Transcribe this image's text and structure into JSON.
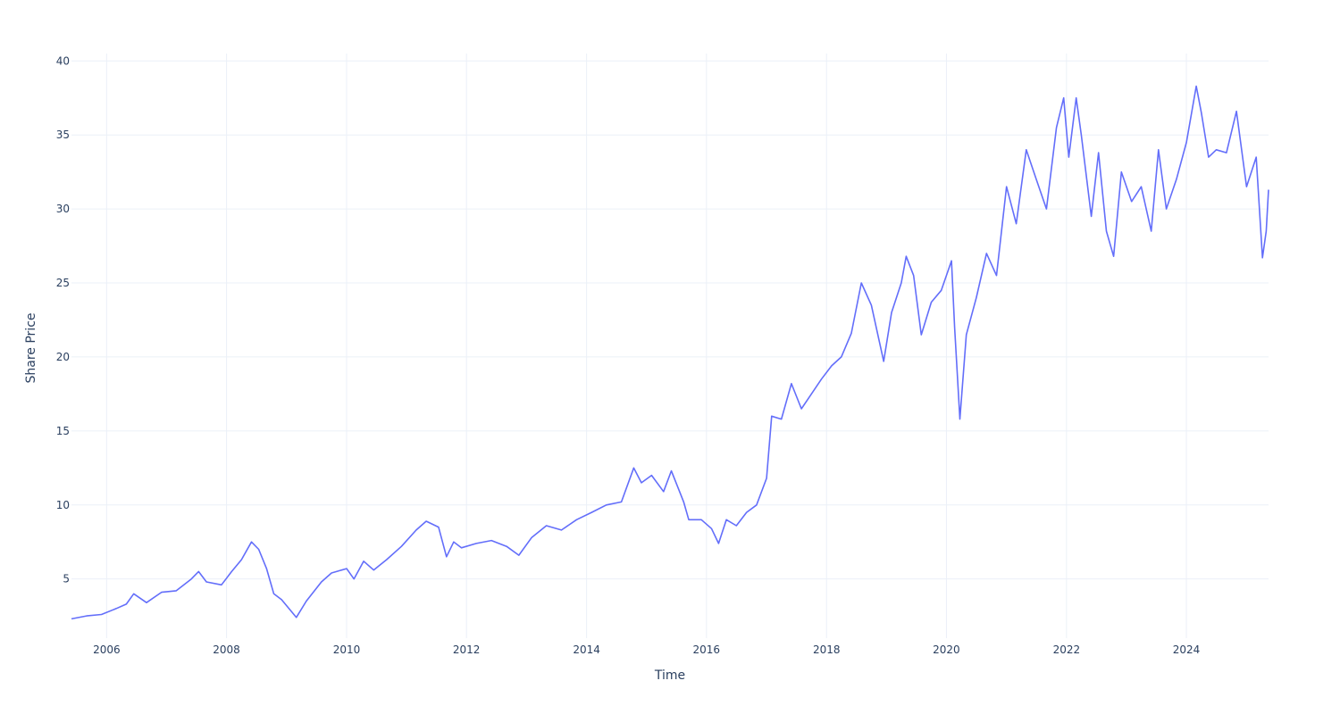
{
  "chart_data": {
    "type": "line",
    "title": "",
    "xlabel": "Time",
    "ylabel": "Share Price",
    "xlim": [
      "2005-06-01",
      "2025-05-15"
    ],
    "ylim": [
      1.0,
      40.5
    ],
    "x_ticks": [
      "2006",
      "2008",
      "2010",
      "2012",
      "2014",
      "2016",
      "2018",
      "2020",
      "2022",
      "2024"
    ],
    "y_ticks": [
      "5",
      "10",
      "15",
      "20",
      "25",
      "30",
      "35",
      "40"
    ],
    "grid": true,
    "line_color": "#636efa",
    "series": [
      {
        "x": [
          "2005-06-01",
          "2005-09-01",
          "2005-12-01",
          "2006-03-01",
          "2006-05-01",
          "2006-06-15",
          "2006-09-01",
          "2006-12-01",
          "2007-03-01",
          "2007-06-01",
          "2007-07-15",
          "2007-09-01",
          "2007-12-01",
          "2008-02-01",
          "2008-04-01",
          "2008-06-01",
          "2008-07-15",
          "2008-09-01",
          "2008-10-15",
          "2008-12-01",
          "2009-03-01",
          "2009-05-01",
          "2009-08-01",
          "2009-10-01",
          "2010-01-01",
          "2010-02-15",
          "2010-04-15",
          "2010-06-15",
          "2010-09-01",
          "2010-12-01",
          "2011-03-01",
          "2011-05-01",
          "2011-07-15",
          "2011-09-01",
          "2011-10-15",
          "2011-12-01",
          "2012-03-01",
          "2012-06-01",
          "2012-09-01",
          "2012-11-15",
          "2013-02-01",
          "2013-05-01",
          "2013-08-01",
          "2013-11-01",
          "2014-02-01",
          "2014-05-01",
          "2014-08-01",
          "2014-10-15",
          "2014-12-01",
          "2015-02-01",
          "2015-04-15",
          "2015-06-01",
          "2015-08-15",
          "2015-09-15",
          "2015-12-01",
          "2016-02-01",
          "2016-03-15",
          "2016-05-01",
          "2016-07-01",
          "2016-09-01",
          "2016-11-01",
          "2017-01-01",
          "2017-02-01",
          "2017-04-01",
          "2017-06-01",
          "2017-08-01",
          "2017-10-01",
          "2017-12-01",
          "2018-02-01",
          "2018-04-01",
          "2018-06-01",
          "2018-08-01",
          "2018-10-01",
          "2018-12-15",
          "2019-02-01",
          "2019-04-01",
          "2019-05-01",
          "2019-06-15",
          "2019-08-01",
          "2019-10-01",
          "2019-12-01",
          "2020-02-01",
          "2020-02-20",
          "2020-03-23",
          "2020-05-01",
          "2020-07-01",
          "2020-09-01",
          "2020-11-01",
          "2021-01-01",
          "2021-03-01",
          "2021-05-01",
          "2021-07-01",
          "2021-09-01",
          "2021-11-01",
          "2021-12-15",
          "2022-01-15",
          "2022-03-01",
          "2022-04-01",
          "2022-06-01",
          "2022-07-15",
          "2022-09-01",
          "2022-10-15",
          "2022-12-01",
          "2023-02-01",
          "2023-04-01",
          "2023-06-01",
          "2023-07-15",
          "2023-09-01",
          "2023-11-01",
          "2024-01-01",
          "2024-03-01",
          "2024-04-01",
          "2024-05-15",
          "2024-07-01",
          "2024-09-01",
          "2024-11-01",
          "2025-01-01",
          "2025-03-01",
          "2025-04-08",
          "2025-05-01",
          "2025-05-15"
        ],
        "y": [
          2.3,
          2.5,
          2.6,
          3.0,
          3.3,
          4.0,
          3.4,
          4.1,
          4.2,
          5.0,
          5.5,
          4.8,
          4.6,
          5.5,
          6.3,
          7.5,
          7.0,
          5.7,
          4.0,
          3.6,
          2.4,
          3.5,
          4.8,
          5.4,
          5.7,
          5.0,
          6.2,
          5.6,
          6.3,
          7.2,
          8.3,
          8.9,
          8.5,
          6.5,
          7.5,
          7.1,
          7.4,
          7.6,
          7.2,
          6.6,
          7.8,
          8.6,
          8.3,
          9.0,
          9.5,
          10.0,
          10.2,
          12.5,
          11.5,
          12.0,
          10.9,
          12.3,
          10.2,
          9.0,
          9.0,
          8.4,
          7.4,
          9.0,
          8.6,
          9.5,
          10.0,
          11.8,
          16.0,
          15.8,
          18.2,
          16.5,
          17.5,
          18.5,
          19.4,
          20.0,
          21.6,
          25.0,
          23.5,
          19.7,
          23.0,
          25.0,
          26.8,
          25.5,
          21.5,
          23.7,
          24.5,
          26.5,
          22.0,
          15.8,
          21.5,
          24.0,
          27.0,
          25.5,
          31.5,
          29.0,
          34.0,
          32.0,
          30.0,
          35.5,
          37.5,
          33.5,
          37.5,
          35.0,
          29.5,
          33.8,
          28.5,
          26.8,
          32.5,
          30.5,
          31.5,
          28.5,
          34.0,
          30.0,
          32.0,
          34.5,
          38.3,
          36.5,
          33.5,
          34.0,
          33.8,
          36.6,
          31.5,
          33.5,
          26.7,
          28.5,
          31.3
        ]
      }
    ]
  }
}
